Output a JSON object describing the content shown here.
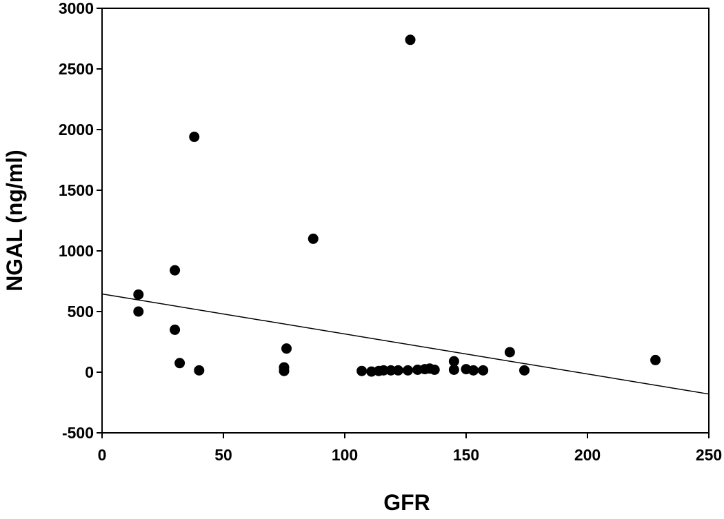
{
  "chart_data": {
    "type": "scatter",
    "xlabel": "GFR",
    "ylabel": "NGAL (ng/ml)",
    "xlim": [
      0,
      250
    ],
    "ylim": [
      -500,
      3000
    ],
    "xticks": [
      0,
      50,
      100,
      150,
      200,
      250
    ],
    "yticks": [
      -500,
      0,
      500,
      1000,
      1500,
      2000,
      2500,
      3000
    ],
    "xtick_labels": [
      "0",
      "50",
      "100",
      "150",
      "200",
      "250"
    ],
    "ytick_labels": [
      "-500",
      "0",
      "500",
      "1000",
      "1500",
      "2000",
      "2500",
      "3000"
    ],
    "grid": false,
    "colors": {
      "marker": "#000000",
      "line": "#000000",
      "axis": "#000000"
    },
    "series": [
      {
        "points": [
          [
            15,
            640
          ],
          [
            15,
            500
          ],
          [
            30,
            840
          ],
          [
            30,
            350
          ],
          [
            32,
            75
          ],
          [
            38,
            1940
          ],
          [
            40,
            15
          ],
          [
            75,
            40
          ],
          [
            75,
            10
          ],
          [
            76,
            195
          ],
          [
            87,
            1100
          ],
          [
            107,
            10
          ],
          [
            111,
            5
          ],
          [
            114,
            10
          ],
          [
            116,
            15
          ],
          [
            119,
            15
          ],
          [
            122,
            15
          ],
          [
            126,
            15
          ],
          [
            127,
            2740
          ],
          [
            130,
            20
          ],
          [
            133,
            25
          ],
          [
            135,
            30
          ],
          [
            137,
            20
          ],
          [
            145,
            90
          ],
          [
            145,
            20
          ],
          [
            150,
            25
          ],
          [
            153,
            15
          ],
          [
            157,
            15
          ],
          [
            168,
            165
          ],
          [
            174,
            15
          ],
          [
            228,
            100
          ]
        ]
      }
    ],
    "trendline": {
      "x": [
        0,
        250
      ],
      "y": [
        645,
        -180
      ]
    }
  }
}
